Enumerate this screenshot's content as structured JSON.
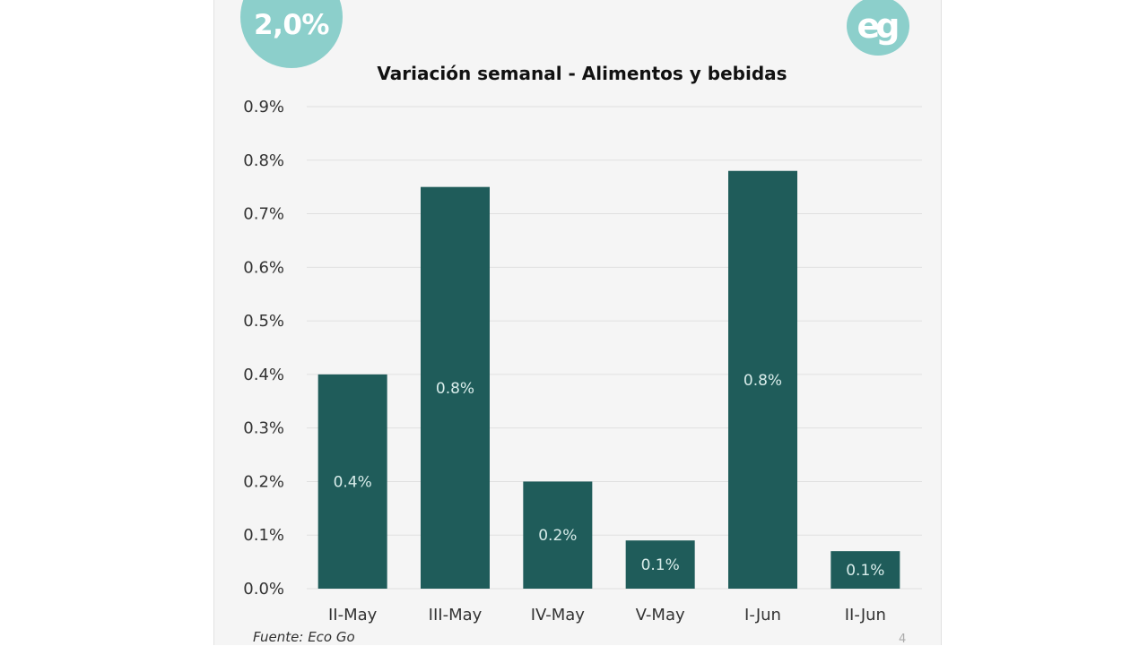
{
  "badge": {
    "text": "2,0%"
  },
  "logo": {
    "text": "eg"
  },
  "source": "Fuente: Eco Go",
  "page_number": "4",
  "colors": {
    "bar": "#1f5c5a",
    "accent": "#8ccfcb",
    "grid": "#e0e0e0"
  },
  "chart_data": {
    "type": "bar",
    "title": "Variación semanal - Alimentos y bebidas",
    "categories": [
      "II-May",
      "III-May",
      "IV-May",
      "V-May",
      "I-Jun",
      "II-Jun"
    ],
    "values": [
      0.4,
      0.75,
      0.2,
      0.09,
      0.78,
      0.07
    ],
    "data_labels": [
      "0.4%",
      "0.8%",
      "0.2%",
      "0.1%",
      "0.8%",
      "0.1%"
    ],
    "y_ticks": [
      "0.0%",
      "0.1%",
      "0.2%",
      "0.3%",
      "0.4%",
      "0.5%",
      "0.6%",
      "0.7%",
      "0.8%",
      "0.9%"
    ],
    "ylim": [
      0,
      0.9
    ],
    "xlabel": "",
    "ylabel": "",
    "grid": true,
    "legend": false
  }
}
